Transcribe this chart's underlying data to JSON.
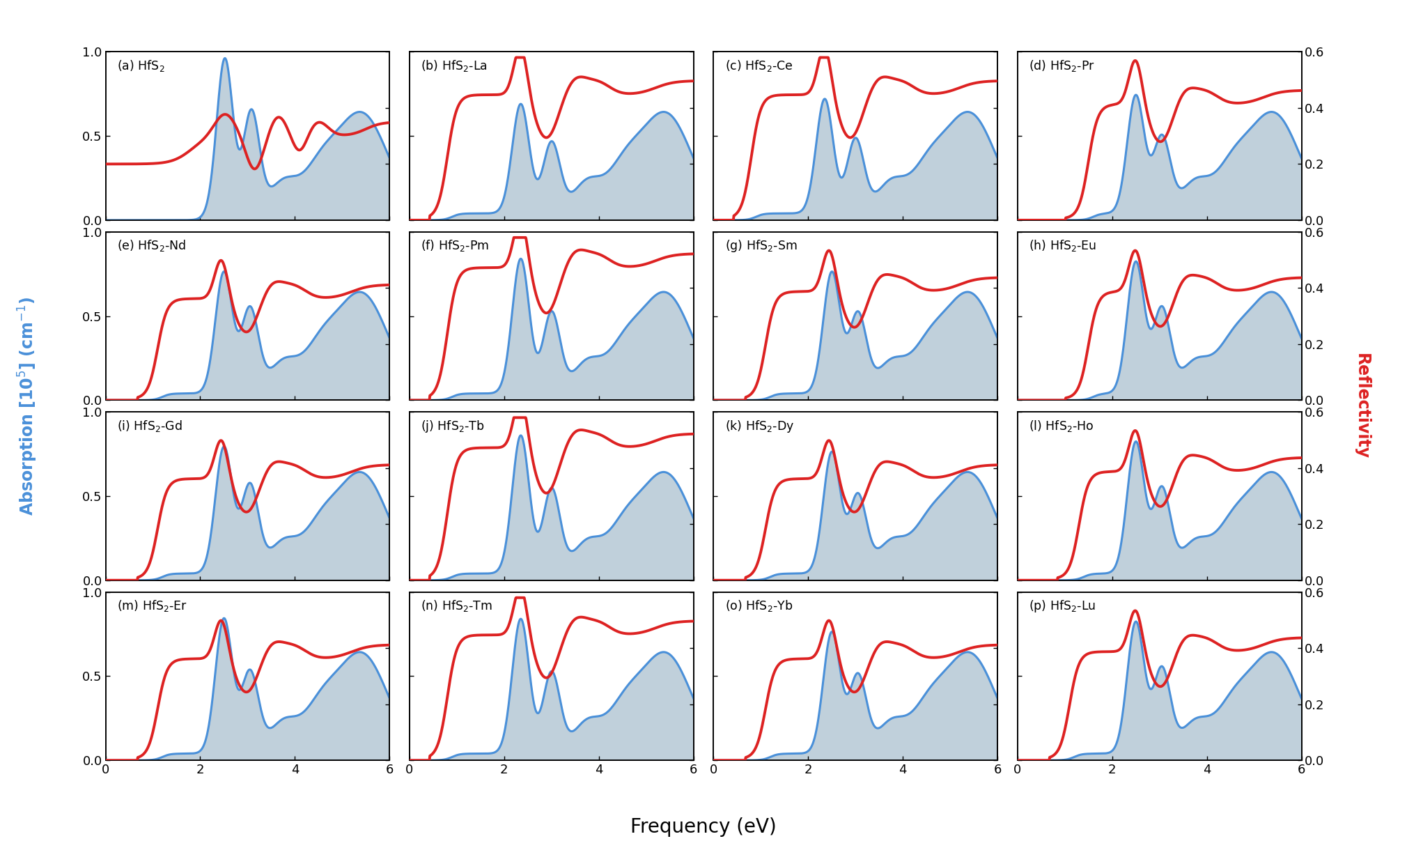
{
  "panels": [
    {
      "label": "(a) HfS$_2$",
      "row": 0,
      "col": 0,
      "type": "pure"
    },
    {
      "label": "(b) HfS$_2$-La",
      "row": 0,
      "col": 1,
      "type": "doped"
    },
    {
      "label": "(c) HfS$_2$-Ce",
      "row": 0,
      "col": 2,
      "type": "doped"
    },
    {
      "label": "(d) HfS$_2$-Pr",
      "row": 0,
      "col": 3,
      "type": "doped2"
    },
    {
      "label": "(e) HfS$_2$-Nd",
      "row": 1,
      "col": 0,
      "type": "doped3"
    },
    {
      "label": "(f) HfS$_2$-Pm",
      "row": 1,
      "col": 1,
      "type": "doped"
    },
    {
      "label": "(g) HfS$_2$-Sm",
      "row": 1,
      "col": 2,
      "type": "doped3"
    },
    {
      "label": "(h) HfS$_2$-Eu",
      "row": 1,
      "col": 3,
      "type": "doped3"
    },
    {
      "label": "(i) HfS$_2$-Gd",
      "row": 2,
      "col": 0,
      "type": "doped3"
    },
    {
      "label": "(j) HfS$_2$-Tb",
      "row": 2,
      "col": 1,
      "type": "doped"
    },
    {
      "label": "(k) HfS$_2$-Dy",
      "row": 2,
      "col": 2,
      "type": "doped3"
    },
    {
      "label": "(l) HfS$_2$-Ho",
      "row": 2,
      "col": 3,
      "type": "doped4"
    },
    {
      "label": "(m) HfS$_2$-Er",
      "row": 3,
      "col": 0,
      "type": "doped3"
    },
    {
      "label": "(n) HfS$_2$-Tm",
      "row": 3,
      "col": 1,
      "type": "doped"
    },
    {
      "label": "(o) HfS$_2$-Yb",
      "row": 3,
      "col": 2,
      "type": "doped3"
    },
    {
      "label": "(p) HfS$_2$-Lu",
      "row": 3,
      "col": 3,
      "type": "doped4"
    }
  ],
  "xlabel": "Frequency (eV)",
  "ylabel_left": "Absorption [10$^5$] (cm$^{-1}$)",
  "ylabel_right": "Reflectivity",
  "xlim": [
    0,
    6
  ],
  "ylim_abs": [
    0,
    1.0
  ],
  "ylim_ref": [
    0.0,
    0.6
  ],
  "blue_color": "#4a90d9",
  "red_color": "#dd2222",
  "fill_color": "#9fb8c8",
  "background": "#ffffff"
}
